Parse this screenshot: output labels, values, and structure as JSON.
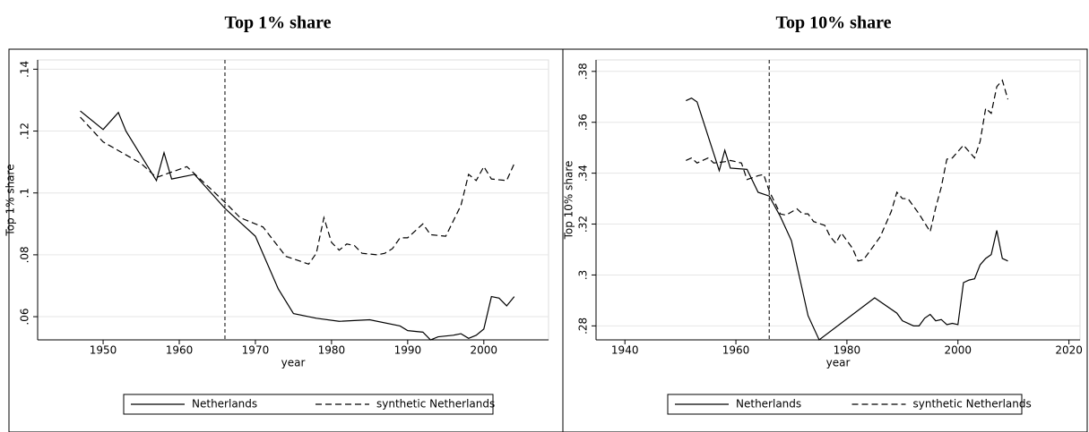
{
  "chart_data": [
    {
      "type": "line",
      "title": "Top 1% share",
      "xlabel": "year",
      "ylabel": "Top 1% share",
      "xlim": [
        1941.4,
        2008.5
      ],
      "ylim": [
        0.0525,
        0.143
      ],
      "xticks": [
        1950,
        1960,
        1970,
        1980,
        1990,
        2000
      ],
      "yticks": [
        {
          "value": 0.06,
          "label": ".06"
        },
        {
          "value": 0.08,
          "label": ".08"
        },
        {
          "value": 0.1,
          "label": ".1"
        },
        {
          "value": 0.12,
          "label": ".12"
        },
        {
          "value": 0.14,
          "label": ".14"
        }
      ],
      "grid": true,
      "vline": 1966,
      "legend": "bottom",
      "series": [
        {
          "name": "Netherlands",
          "color": "#000000",
          "style": "solid",
          "x": [
            1947,
            1950,
            1952,
            1953,
            1957,
            1958,
            1959,
            1962,
            1966,
            1970,
            1973,
            1975,
            1978,
            1981,
            1985,
            1989,
            1990,
            1992,
            1993,
            1994,
            1996,
            1997,
            1998,
            1999,
            2000,
            2001,
            2002,
            2003,
            2004
          ],
          "values": [
            0.1265,
            0.1205,
            0.126,
            0.12,
            0.104,
            0.113,
            0.1045,
            0.106,
            0.095,
            0.086,
            0.069,
            0.061,
            0.0595,
            0.0585,
            0.059,
            0.057,
            0.0555,
            0.055,
            0.0525,
            0.0535,
            0.054,
            0.0545,
            0.053,
            0.054,
            0.056,
            0.0665,
            0.066,
            0.0635,
            0.0665
          ]
        },
        {
          "name": "synthetic Netherlands",
          "color": "#000000",
          "style": "dashed",
          "x": [
            1947,
            1950,
            1955,
            1957,
            1961,
            1966,
            1968,
            1971,
            1974,
            1977,
            1978,
            1979,
            1980,
            1981,
            1982,
            1983,
            1984,
            1986,
            1987,
            1988,
            1989,
            1990,
            1992,
            1993,
            1995,
            1997,
            1998,
            1999,
            2000,
            2001,
            2003,
            2004
          ],
          "values": [
            0.1245,
            0.1165,
            0.1095,
            0.105,
            0.1085,
            0.097,
            0.092,
            0.089,
            0.0795,
            0.077,
            0.0805,
            0.092,
            0.084,
            0.0815,
            0.0835,
            0.083,
            0.0805,
            0.08,
            0.0805,
            0.082,
            0.0855,
            0.0855,
            0.09,
            0.0865,
            0.086,
            0.096,
            0.106,
            0.104,
            0.1085,
            0.1045,
            0.104,
            0.1095
          ]
        }
      ]
    },
    {
      "type": "line",
      "title": "Top 10% share",
      "xlabel": "year",
      "ylabel": "Top 10% share",
      "xlim": [
        1934.8,
        2022
      ],
      "ylim": [
        0.2745,
        0.3845
      ],
      "xticks": [
        1940,
        1960,
        1980,
        2000,
        2020
      ],
      "yticks": [
        {
          "value": 0.28,
          "label": ".28"
        },
        {
          "value": 0.3,
          "label": ".3"
        },
        {
          "value": 0.32,
          "label": ".32"
        },
        {
          "value": 0.34,
          "label": ".34"
        },
        {
          "value": 0.36,
          "label": ".36"
        },
        {
          "value": 0.38,
          "label": ".38"
        }
      ],
      "grid": true,
      "vline": 1966,
      "legend": "bottom",
      "series": [
        {
          "name": "Netherlands",
          "color": "#000000",
          "style": "solid",
          "x": [
            1951,
            1952,
            1953,
            1957,
            1958,
            1959,
            1962,
            1963,
            1964,
            1966,
            1968,
            1970,
            1973,
            1975,
            1985,
            1989,
            1990,
            1992,
            1993,
            1994,
            1995,
            1996,
            1997,
            1998,
            1999,
            2000,
            2001,
            2002,
            2003,
            2004,
            2005,
            2006,
            2007,
            2008,
            2009
          ],
          "values": [
            0.3685,
            0.3695,
            0.368,
            0.341,
            0.349,
            0.342,
            0.3415,
            0.337,
            0.3325,
            0.331,
            0.323,
            0.3135,
            0.284,
            0.2745,
            0.291,
            0.285,
            0.282,
            0.28,
            0.28,
            0.283,
            0.2845,
            0.282,
            0.2825,
            0.2805,
            0.281,
            0.2805,
            0.297,
            0.298,
            0.2985,
            0.304,
            0.3065,
            0.308,
            0.3175,
            0.3065,
            0.3055
          ]
        },
        {
          "name": "synthetic Netherlands",
          "color": "#000000",
          "style": "dashed",
          "x": [
            1951,
            1952,
            1953,
            1955,
            1956,
            1958,
            1959,
            1961,
            1962,
            1964,
            1965,
            1966,
            1968,
            1969,
            1971,
            1972,
            1973,
            1974,
            1976,
            1977,
            1978,
            1979,
            1981,
            1982,
            1983,
            1984,
            1986,
            1988,
            1989,
            1990,
            1991,
            1993,
            1995,
            1996,
            1997,
            1998,
            1999,
            2001,
            2003,
            2004,
            2005,
            2006,
            2007,
            2008,
            2009
          ],
          "values": [
            0.345,
            0.346,
            0.344,
            0.346,
            0.344,
            0.3445,
            0.345,
            0.344,
            0.3375,
            0.339,
            0.3395,
            0.333,
            0.324,
            0.3235,
            0.326,
            0.324,
            0.324,
            0.321,
            0.3195,
            0.315,
            0.3125,
            0.3165,
            0.3105,
            0.3055,
            0.306,
            0.309,
            0.315,
            0.325,
            0.3325,
            0.33,
            0.33,
            0.324,
            0.317,
            0.3265,
            0.3345,
            0.3455,
            0.346,
            0.351,
            0.346,
            0.3525,
            0.3655,
            0.3635,
            0.374,
            0.3765,
            0.369
          ]
        }
      ]
    }
  ]
}
